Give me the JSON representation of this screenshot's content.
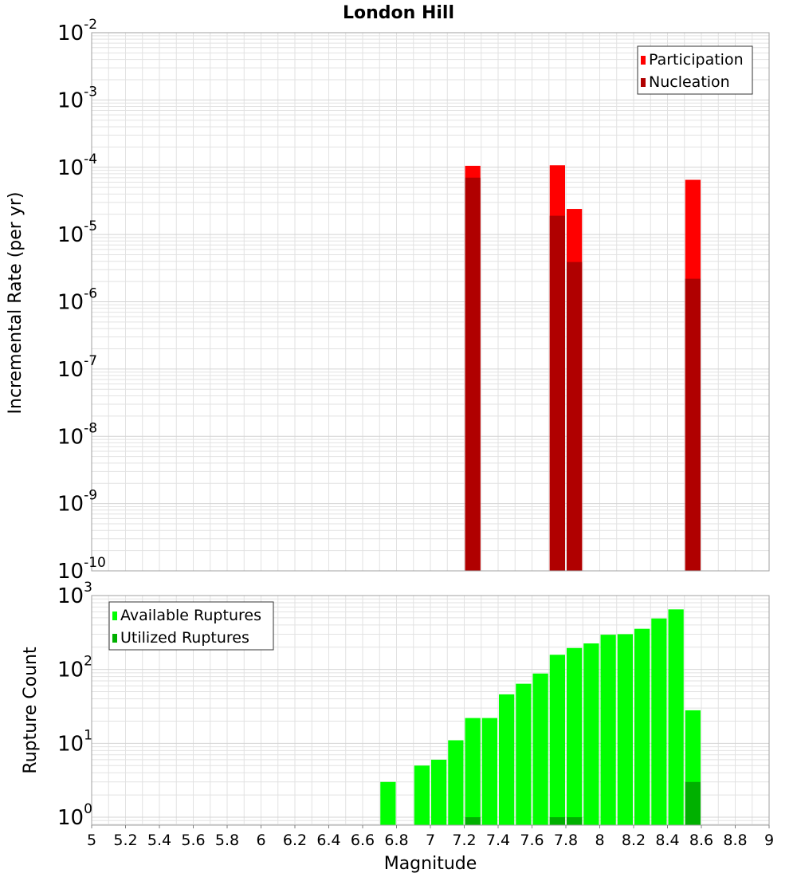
{
  "title": "London Hill",
  "colors": {
    "participation": "#ff0000",
    "nucleation": "#b00000",
    "available": "#00ff00",
    "utilized": "#00b000",
    "grid": "#e2e2e2",
    "frame": "#a0a0a0"
  },
  "chart_data": [
    {
      "type": "bar",
      "panel": "top",
      "ylabel": "Incremental Rate (per yr)",
      "yscale": "log",
      "ylim": [
        1e-10,
        0.01
      ],
      "xlim": [
        5,
        9
      ],
      "legend_position": "top-right",
      "grid": true,
      "y_ticks": [
        {
          "base": "10",
          "exp": "-2",
          "value": 0.01
        },
        {
          "base": "10",
          "exp": "-3",
          "value": 0.001
        },
        {
          "base": "10",
          "exp": "-4",
          "value": 0.0001
        },
        {
          "base": "10",
          "exp": "-5",
          "value": 1e-05
        },
        {
          "base": "10",
          "exp": "-6",
          "value": 1e-06
        },
        {
          "base": "10",
          "exp": "-7",
          "value": 1e-07
        },
        {
          "base": "10",
          "exp": "-8",
          "value": 1e-08
        },
        {
          "base": "10",
          "exp": "-9",
          "value": 1e-09
        },
        {
          "base": "10",
          "exp": "-10",
          "value": 1e-10
        }
      ],
      "series": [
        {
          "name": "Participation",
          "color": "#ff0000",
          "points": [
            [
              7.25,
              0.000105
            ],
            [
              7.75,
              0.000107
            ],
            [
              7.85,
              2.4e-05
            ],
            [
              8.55,
              6.5e-05
            ]
          ]
        },
        {
          "name": "Nucleation",
          "color": "#b00000",
          "points": [
            [
              7.25,
              7e-05
            ],
            [
              7.75,
              1.9e-05
            ],
            [
              7.85,
              3.9e-06
            ],
            [
              8.55,
              2.2e-06
            ]
          ]
        }
      ]
    },
    {
      "type": "bar",
      "panel": "bottom",
      "xlabel": "Magnitude",
      "ylabel": "Rupture Count",
      "yscale": "log",
      "ylim": [
        0.78,
        1000
      ],
      "xlim": [
        5,
        9
      ],
      "legend_position": "top-left",
      "grid": true,
      "x_ticks": [
        "5",
        "5.2",
        "5.4",
        "5.6",
        "5.8",
        "6",
        "6.2",
        "6.4",
        "6.6",
        "6.8",
        "7",
        "7.2",
        "7.4",
        "7.6",
        "7.8",
        "8",
        "8.2",
        "8.4",
        "8.6",
        "8.8",
        "9"
      ],
      "y_ticks": [
        {
          "base": "10",
          "exp": "3",
          "value": 1000
        },
        {
          "base": "10",
          "exp": "2",
          "value": 100
        },
        {
          "base": "10",
          "exp": "1",
          "value": 10
        },
        {
          "base": "10",
          "exp": "0",
          "value": 1
        }
      ],
      "series": [
        {
          "name": "Available Ruptures",
          "color": "#00ff00",
          "points": [
            [
              6.75,
              3
            ],
            [
              6.95,
              5
            ],
            [
              7.05,
              6
            ],
            [
              7.15,
              11
            ],
            [
              7.25,
              22
            ],
            [
              7.35,
              22
            ],
            [
              7.45,
              46
            ],
            [
              7.55,
              64
            ],
            [
              7.65,
              88
            ],
            [
              7.75,
              158
            ],
            [
              7.85,
              195
            ],
            [
              7.95,
              225
            ],
            [
              8.05,
              295
            ],
            [
              8.15,
              300
            ],
            [
              8.25,
              355
            ],
            [
              8.35,
              490
            ],
            [
              8.45,
              650
            ],
            [
              8.55,
              28
            ]
          ]
        },
        {
          "name": "Utilized Ruptures",
          "color": "#00b000",
          "points": [
            [
              7.25,
              1
            ],
            [
              7.75,
              1
            ],
            [
              7.85,
              1
            ],
            [
              8.55,
              3
            ]
          ]
        }
      ]
    }
  ]
}
